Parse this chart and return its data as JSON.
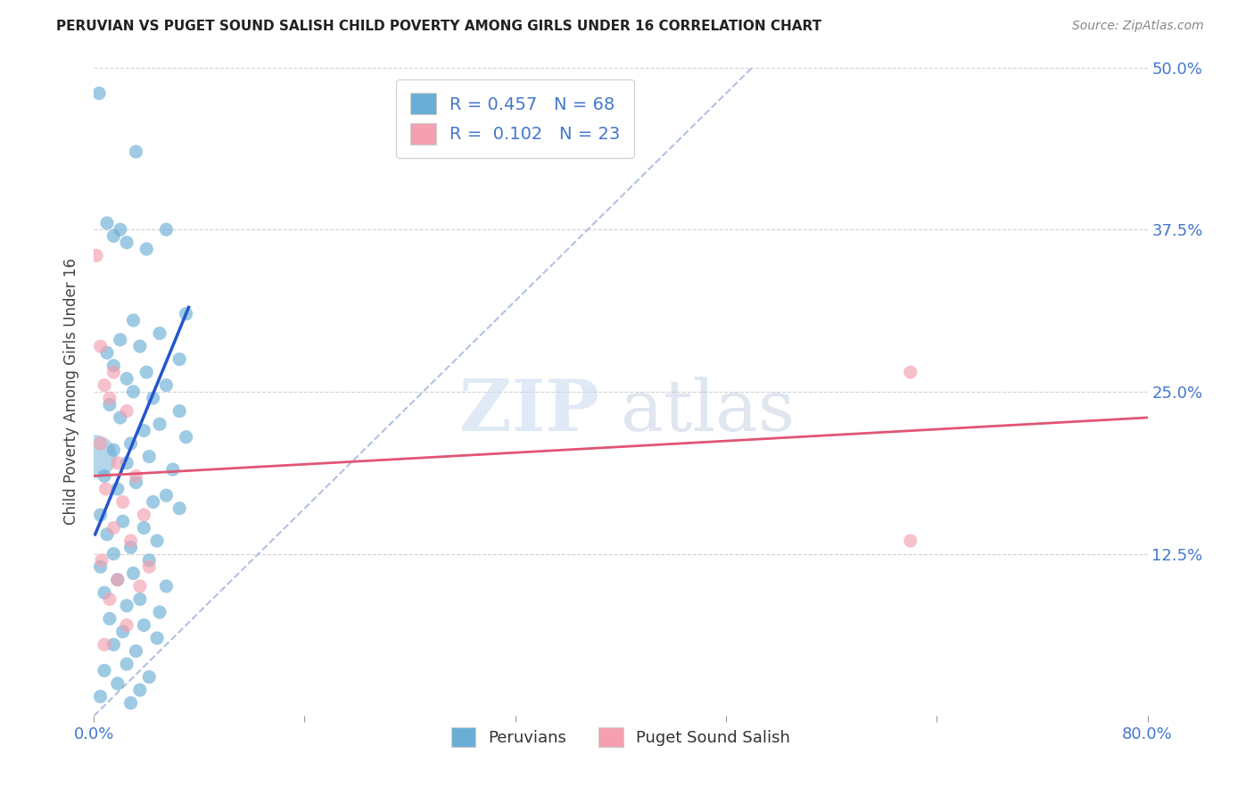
{
  "title": "PERUVIAN VS PUGET SOUND SALISH CHILD POVERTY AMONG GIRLS UNDER 16 CORRELATION CHART",
  "source": "Source: ZipAtlas.com",
  "ylabel": "Child Poverty Among Girls Under 16",
  "xlim": [
    0.0,
    0.8
  ],
  "ylim": [
    0.0,
    0.5
  ],
  "xticks": [
    0.0,
    0.16,
    0.32,
    0.48,
    0.64,
    0.8
  ],
  "xticklabels": [
    "0.0%",
    "",
    "",
    "",
    "",
    "80.0%"
  ],
  "yticks": [
    0.0,
    0.125,
    0.25,
    0.375,
    0.5
  ],
  "yticklabels": [
    "",
    "12.5%",
    "25.0%",
    "37.5%",
    "50.0%"
  ],
  "blue_R": 0.457,
  "blue_N": 68,
  "pink_R": 0.102,
  "pink_N": 23,
  "blue_color": "#6aaed6",
  "pink_color": "#f4a0b0",
  "blue_line_color": "#2255cc",
  "pink_line_color": "#e05575",
  "ref_line_color": "#aabbdd",
  "legend_label_blue": "Peruvians",
  "legend_label_pink": "Puget Sound Salish",
  "watermark_zip": "ZIP",
  "watermark_atlas": "atlas",
  "background_color": "#ffffff",
  "blue_points": [
    [
      0.004,
      0.48
    ],
    [
      0.032,
      0.435
    ],
    [
      0.01,
      0.38
    ],
    [
      0.02,
      0.375
    ],
    [
      0.015,
      0.37
    ],
    [
      0.055,
      0.375
    ],
    [
      0.025,
      0.365
    ],
    [
      0.04,
      0.36
    ],
    [
      0.07,
      0.31
    ],
    [
      0.03,
      0.305
    ],
    [
      0.05,
      0.295
    ],
    [
      0.02,
      0.29
    ],
    [
      0.035,
      0.285
    ],
    [
      0.01,
      0.28
    ],
    [
      0.065,
      0.275
    ],
    [
      0.015,
      0.27
    ],
    [
      0.04,
      0.265
    ],
    [
      0.025,
      0.26
    ],
    [
      0.055,
      0.255
    ],
    [
      0.03,
      0.25
    ],
    [
      0.045,
      0.245
    ],
    [
      0.012,
      0.24
    ],
    [
      0.065,
      0.235
    ],
    [
      0.02,
      0.23
    ],
    [
      0.05,
      0.225
    ],
    [
      0.038,
      0.22
    ],
    [
      0.07,
      0.215
    ],
    [
      0.028,
      0.21
    ],
    [
      0.015,
      0.205
    ],
    [
      0.042,
      0.2
    ],
    [
      0.025,
      0.195
    ],
    [
      0.06,
      0.19
    ],
    [
      0.008,
      0.185
    ],
    [
      0.032,
      0.18
    ],
    [
      0.018,
      0.175
    ],
    [
      0.055,
      0.17
    ],
    [
      0.045,
      0.165
    ],
    [
      0.065,
      0.16
    ],
    [
      0.005,
      0.155
    ],
    [
      0.022,
      0.15
    ],
    [
      0.038,
      0.145
    ],
    [
      0.01,
      0.14
    ],
    [
      0.048,
      0.135
    ],
    [
      0.028,
      0.13
    ],
    [
      0.015,
      0.125
    ],
    [
      0.042,
      0.12
    ],
    [
      0.005,
      0.115
    ],
    [
      0.03,
      0.11
    ],
    [
      0.018,
      0.105
    ],
    [
      0.055,
      0.1
    ],
    [
      0.008,
      0.095
    ],
    [
      0.035,
      0.09
    ],
    [
      0.025,
      0.085
    ],
    [
      0.05,
      0.08
    ],
    [
      0.012,
      0.075
    ],
    [
      0.038,
      0.07
    ],
    [
      0.022,
      0.065
    ],
    [
      0.048,
      0.06
    ],
    [
      0.015,
      0.055
    ],
    [
      0.032,
      0.05
    ],
    [
      0.025,
      0.04
    ],
    [
      0.008,
      0.035
    ],
    [
      0.042,
      0.03
    ],
    [
      0.018,
      0.025
    ],
    [
      0.035,
      0.02
    ],
    [
      0.005,
      0.015
    ],
    [
      0.028,
      0.01
    ],
    [
      0.001,
      0.2
    ]
  ],
  "blue_point_sizes": [
    80,
    80,
    80,
    80,
    80,
    80,
    80,
    80,
    80,
    80,
    80,
    80,
    80,
    80,
    80,
    80,
    80,
    80,
    80,
    80,
    80,
    80,
    80,
    80,
    80,
    80,
    80,
    80,
    80,
    80,
    80,
    80,
    80,
    80,
    80,
    80,
    80,
    80,
    80,
    80,
    80,
    80,
    80,
    80,
    80,
    80,
    80,
    80,
    80,
    80,
    80,
    80,
    80,
    80,
    80,
    80,
    80,
    80,
    80,
    80,
    80,
    80,
    80,
    80,
    80,
    80,
    80,
    1200
  ],
  "pink_points": [
    [
      0.002,
      0.355
    ],
    [
      0.005,
      0.285
    ],
    [
      0.015,
      0.265
    ],
    [
      0.008,
      0.255
    ],
    [
      0.012,
      0.245
    ],
    [
      0.025,
      0.235
    ],
    [
      0.005,
      0.21
    ],
    [
      0.018,
      0.195
    ],
    [
      0.032,
      0.185
    ],
    [
      0.009,
      0.175
    ],
    [
      0.022,
      0.165
    ],
    [
      0.038,
      0.155
    ],
    [
      0.015,
      0.145
    ],
    [
      0.028,
      0.135
    ],
    [
      0.006,
      0.12
    ],
    [
      0.042,
      0.115
    ],
    [
      0.018,
      0.105
    ],
    [
      0.035,
      0.1
    ],
    [
      0.012,
      0.09
    ],
    [
      0.025,
      0.07
    ],
    [
      0.008,
      0.055
    ],
    [
      0.62,
      0.265
    ],
    [
      0.62,
      0.135
    ]
  ],
  "blue_line_x": [
    0.001,
    0.072
  ],
  "blue_line_y": [
    0.14,
    0.315
  ],
  "pink_line_x": [
    0.0,
    0.8
  ],
  "pink_line_y": [
    0.185,
    0.23
  ],
  "ref_line_x": [
    0.0,
    0.5
  ],
  "ref_line_y": [
    0.0,
    0.5
  ]
}
